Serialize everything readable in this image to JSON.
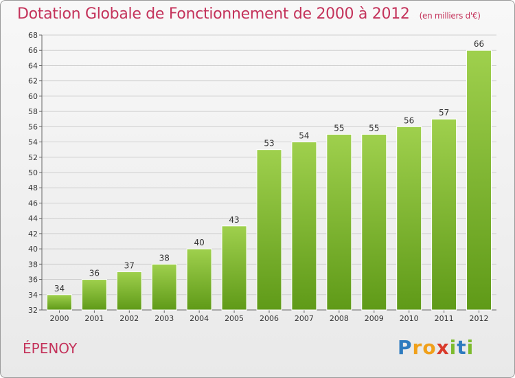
{
  "title": "Dotation Globale de Fonctionnement de 2000 à 2012",
  "subtitle": "(en milliers d'€)",
  "commune": "ÉPENOY",
  "logo": {
    "letters": [
      "P",
      "r",
      "o",
      "x",
      "i",
      "t",
      "i"
    ],
    "colors": [
      "#2e7bbf",
      "#f0a01a",
      "#f0a01a",
      "#d93a2b",
      "#7dbb2e",
      "#2e7bbf",
      "#7dbb2e"
    ]
  },
  "colors": {
    "bar_light": "#9fd04d",
    "bar_dark": "#5f9a18",
    "title": "#c4335b",
    "grid": "#cfcfcf"
  },
  "chart_data": {
    "type": "bar",
    "categories": [
      "2000",
      "2001",
      "2002",
      "2003",
      "2004",
      "2005",
      "2006",
      "2007",
      "2008",
      "2009",
      "2010",
      "2011",
      "2012"
    ],
    "values": [
      34,
      36,
      37,
      38,
      40,
      43,
      53,
      54,
      55,
      55,
      56,
      57,
      66
    ],
    "ylim": [
      32,
      68
    ],
    "ytick_step": 2,
    "grid": true,
    "data_labels": true
  }
}
